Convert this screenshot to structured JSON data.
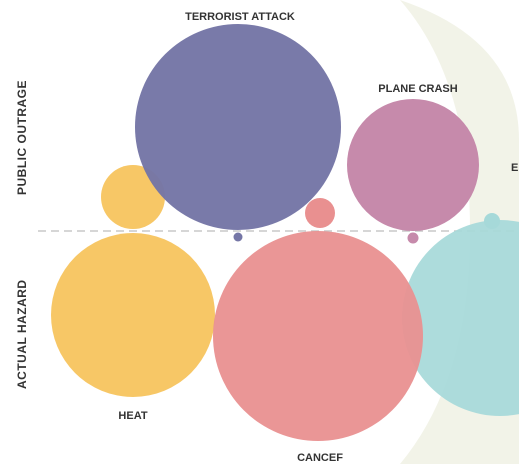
{
  "chart_data": {
    "type": "bubble-comparison",
    "axis_labels": {
      "upper": "PUBLIC OUTRAGE",
      "lower": "ACTUAL HAZARD"
    },
    "bubbles": [
      {
        "id": "terrorist-attack",
        "label": "TERRORIST ATTACK",
        "color": "#7576a6"
      },
      {
        "id": "plane-crash",
        "label": "PLANE CRASH",
        "color": "#c68aab"
      },
      {
        "id": "heat",
        "label": "HEAT",
        "color": "#f7c766"
      },
      {
        "id": "cancer",
        "label": "CANCEF",
        "color": "#e99090"
      },
      {
        "id": "partial-right",
        "label": "E",
        "color": "#a6d9d9"
      }
    ],
    "colors": {
      "divider": "#c8c8c8",
      "text": "#333333",
      "backdrop": "#f2f3e8"
    }
  }
}
